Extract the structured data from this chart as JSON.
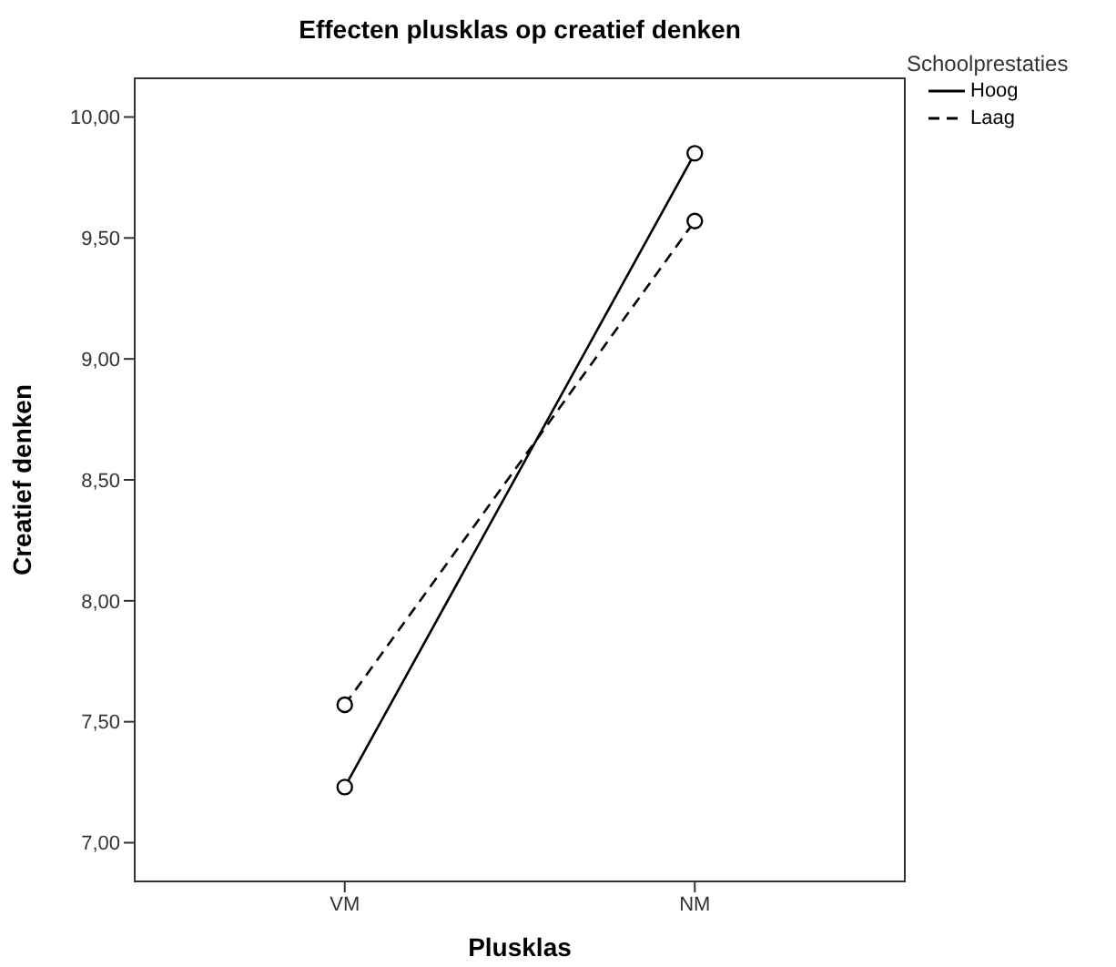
{
  "chart_data": {
    "type": "line",
    "title": "Effecten plusklas op creatief denken",
    "xlabel": "Plusklas",
    "ylabel": "Creatief denken",
    "legend_title": "Schoolprestaties",
    "categories": [
      "VM",
      "NM"
    ],
    "series": [
      {
        "name": "Hoog",
        "color": "#000000",
        "line_style": "solid",
        "values": [
          7.23,
          9.85
        ]
      },
      {
        "name": "Laag",
        "color": "#000000",
        "line_style": "dashed",
        "values": [
          7.57,
          9.57
        ]
      }
    ],
    "ylim": [
      6.84,
      10.16
    ],
    "yticks": [
      {
        "value": 7,
        "label": "7,00"
      },
      {
        "value": 7.5,
        "label": "7,50"
      },
      {
        "value": 8,
        "label": "8,00"
      },
      {
        "value": 8.5,
        "label": "8,50"
      },
      {
        "value": 9,
        "label": "9,00"
      },
      {
        "value": 9.5,
        "label": "9,50"
      },
      {
        "value": 10,
        "label": "10,00"
      }
    ],
    "marker": "circle",
    "grid": false,
    "legend": "top right"
  }
}
